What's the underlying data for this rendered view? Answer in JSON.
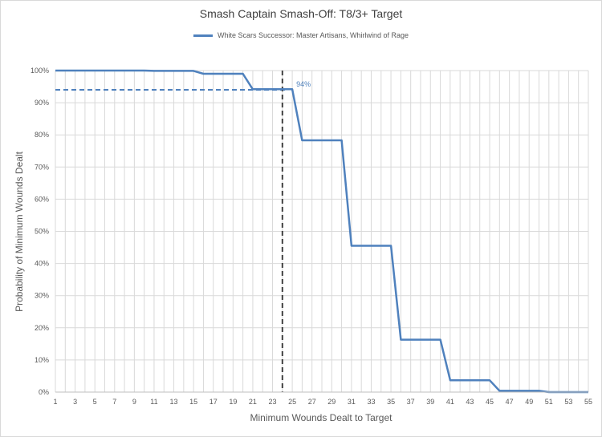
{
  "chart_data": {
    "type": "line",
    "title": "Smash Captain Smash-Off: T8/3+ Target",
    "xlabel": "Minimum Wounds Dealt  to Target",
    "ylabel": "Probability of Minimum Wounds Dealt",
    "xlim": [
      1,
      55
    ],
    "ylim": [
      0,
      1
    ],
    "x_ticks": [
      1,
      3,
      5,
      7,
      9,
      11,
      13,
      15,
      17,
      19,
      21,
      23,
      25,
      27,
      29,
      31,
      33,
      35,
      37,
      39,
      41,
      43,
      45,
      47,
      49,
      51,
      53,
      55
    ],
    "y_ticks": [
      0,
      0.1,
      0.2,
      0.3,
      0.4,
      0.5,
      0.6,
      0.7,
      0.8,
      0.9,
      1.0
    ],
    "y_tick_labels": [
      "0%",
      "10%",
      "20%",
      "30%",
      "40%",
      "50%",
      "60%",
      "70%",
      "80%",
      "90%",
      "100%"
    ],
    "grid": true,
    "legend_position": "top",
    "series": [
      {
        "name": "White Scars Successor: Master Artisans, Whirlwind of Rage",
        "color": "#4f81bd",
        "x": [
          1,
          2,
          3,
          4,
          5,
          6,
          7,
          8,
          9,
          10,
          11,
          12,
          13,
          14,
          15,
          16,
          17,
          18,
          19,
          20,
          21,
          22,
          23,
          24,
          25,
          26,
          27,
          28,
          29,
          30,
          31,
          32,
          33,
          34,
          35,
          36,
          37,
          38,
          39,
          40,
          41,
          42,
          43,
          44,
          45,
          46,
          47,
          48,
          49,
          50,
          51,
          52,
          53,
          54,
          55
        ],
        "y": [
          1.0,
          1.0,
          1.0,
          1.0,
          1.0,
          1.0,
          1.0,
          1.0,
          1.0,
          1.0,
          0.999,
          0.999,
          0.999,
          0.999,
          0.999,
          0.99,
          0.99,
          0.99,
          0.99,
          0.99,
          0.942,
          0.942,
          0.942,
          0.942,
          0.942,
          0.783,
          0.783,
          0.783,
          0.783,
          0.783,
          0.455,
          0.455,
          0.455,
          0.455,
          0.455,
          0.163,
          0.163,
          0.163,
          0.163,
          0.163,
          0.037,
          0.037,
          0.037,
          0.037,
          0.037,
          0.004,
          0.004,
          0.004,
          0.004,
          0.004,
          0.0,
          0.0,
          0.0,
          0.0,
          0.0
        ]
      }
    ],
    "annotations": [
      {
        "type": "hline",
        "y": 0.94,
        "x_from": 1,
        "x_to": 24.5,
        "style": "dashed",
        "color": "#4f81bd"
      },
      {
        "type": "vline",
        "x": 24,
        "style": "dashed",
        "color": "#404040"
      },
      {
        "type": "label",
        "text": "94%",
        "x": 25,
        "y": 0.94,
        "color": "#4f81bd"
      }
    ]
  }
}
